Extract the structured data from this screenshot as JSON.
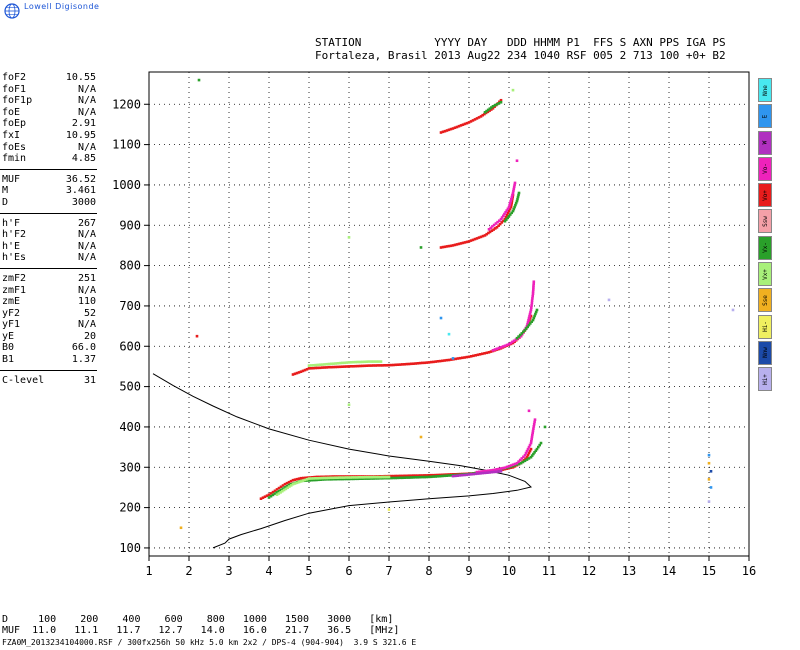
{
  "brand": "Lowell Digisonde",
  "header": {
    "line1": "STATION           YYYY DAY   DDD HHMM P1  FFS S AXN PPS IGA PS",
    "line2": "Fortaleza, Brasil 2013 Aug22 234 1040 RSF 005 2 713 100 +0+ B2"
  },
  "params": [
    [
      {
        "n": "foF2",
        "v": "10.55"
      },
      {
        "n": "foF1",
        "v": "N/A"
      },
      {
        "n": "foF1p",
        "v": "N/A"
      },
      {
        "n": "foE",
        "v": "N/A"
      },
      {
        "n": "foEp",
        "v": "2.91"
      },
      {
        "n": "fxI",
        "v": "10.95"
      },
      {
        "n": "foEs",
        "v": "N/A"
      },
      {
        "n": "fmin",
        "v": "4.85"
      }
    ],
    [
      {
        "n": "MUF",
        "v": "36.52"
      },
      {
        "n": "M",
        "v": "3.461"
      },
      {
        "n": "D",
        "v": "3000"
      }
    ],
    [
      {
        "n": "h'F",
        "v": "267"
      },
      {
        "n": "h'F2",
        "v": "N/A"
      },
      {
        "n": "h'E",
        "v": "N/A"
      },
      {
        "n": "h'Es",
        "v": "N/A"
      }
    ],
    [
      {
        "n": "zmF2",
        "v": "251"
      },
      {
        "n": "zmF1",
        "v": "N/A"
      },
      {
        "n": "zmE",
        "v": "110"
      },
      {
        "n": "yF2",
        "v": "52"
      },
      {
        "n": "yF1",
        "v": "N/A"
      },
      {
        "n": "yE",
        "v": "20"
      },
      {
        "n": "B0",
        "v": "66.0"
      },
      {
        "n": "B1",
        "v": "1.37"
      }
    ],
    [
      {
        "n": "C-level",
        "v": "31"
      }
    ]
  ],
  "legend": [
    {
      "label": "Nne",
      "color": "#48e8f0"
    },
    {
      "label": "E",
      "color": "#2f95ee"
    },
    {
      "label": "W",
      "color": "#b030c0"
    },
    {
      "label": "Vo-",
      "color": "#ee22bb"
    },
    {
      "label": "Vo+",
      "color": "#e81c1c"
    },
    {
      "label": "Ssw",
      "color": "#f4a0a8"
    },
    {
      "label": "Vx-",
      "color": "#2aa02a"
    },
    {
      "label": "Vx+",
      "color": "#a8f07a"
    },
    {
      "label": "Sse",
      "color": "#f0b020"
    },
    {
      "label": "Hi-",
      "color": "#f0f060"
    },
    {
      "label": "Nnw",
      "color": "#1c4aa8"
    },
    {
      "label": "Hi+",
      "color": "#b8b0ee"
    }
  ],
  "dtable": {
    "row1": "D     100    200    400    600    800   1000   1500   3000   [km]",
    "row2": "MUF  11.0   11.1   11.7   12.7   14.0   16.0   21.7   36.5   [MHz]"
  },
  "footer": "FZA0M_2013234104000.RSF / 300fx256h 50 kHz 5.0 km 2x2 / DPS-4 (904-904)  3.9 S 321.6 E",
  "chart_data": {
    "type": "scatter",
    "xlim": [
      1,
      16
    ],
    "ylim": [
      80,
      1280
    ],
    "x_ticks": [
      1,
      2,
      3,
      4,
      5,
      6,
      7,
      8,
      9,
      10,
      11,
      12,
      13,
      14,
      15,
      16
    ],
    "y_ticks": [
      100,
      200,
      300,
      400,
      500,
      600,
      700,
      800,
      900,
      1000,
      1100,
      1200
    ],
    "grid": true,
    "profile": [
      [
        2.6,
        100
      ],
      [
        2.9,
        112
      ],
      [
        3.0,
        122
      ],
      [
        3.3,
        133
      ],
      [
        3.8,
        148
      ],
      [
        4.4,
        168
      ],
      [
        5.0,
        186
      ],
      [
        6.0,
        205
      ],
      [
        7.0,
        214
      ],
      [
        8.0,
        222
      ],
      [
        9.0,
        229
      ],
      [
        9.6,
        235
      ],
      [
        10.2,
        243
      ],
      [
        10.55,
        251
      ],
      [
        10.4,
        265
      ],
      [
        10.0,
        280
      ],
      [
        9.4,
        293
      ],
      [
        8.8,
        304
      ],
      [
        8.0,
        315
      ],
      [
        7.0,
        328
      ],
      [
        6.0,
        345
      ],
      [
        5.0,
        367
      ],
      [
        4.0,
        395
      ],
      [
        3.2,
        425
      ],
      [
        2.6,
        452
      ],
      [
        2.1,
        476
      ],
      [
        1.6,
        503
      ],
      [
        1.1,
        532
      ]
    ],
    "traces": [
      {
        "color": "#e81c1c",
        "points": [
          [
            3.8,
            222
          ],
          [
            4.0,
            232
          ],
          [
            4.2,
            245
          ],
          [
            4.4,
            258
          ],
          [
            4.6,
            268
          ],
          [
            4.8,
            273
          ],
          [
            5.2,
            276
          ],
          [
            5.6,
            277
          ],
          [
            6.0,
            277
          ],
          [
            6.5,
            277
          ],
          [
            7.0,
            278
          ],
          [
            7.5,
            279
          ],
          [
            8.0,
            280
          ],
          [
            8.5,
            282
          ],
          [
            9.0,
            284
          ],
          [
            9.4,
            288
          ],
          [
            9.8,
            293
          ],
          [
            10.1,
            300
          ],
          [
            10.3,
            310
          ],
          [
            10.45,
            325
          ],
          [
            10.55,
            345
          ]
        ]
      },
      {
        "color": "#2aa02a",
        "points": [
          [
            4.0,
            225
          ],
          [
            4.2,
            238
          ],
          [
            4.5,
            256
          ],
          [
            4.8,
            266
          ],
          [
            5.4,
            270
          ],
          [
            6.0,
            271
          ],
          [
            7.0,
            273
          ],
          [
            8.0,
            276
          ],
          [
            9.0,
            283
          ],
          [
            9.6,
            292
          ],
          [
            10.0,
            300
          ],
          [
            10.3,
            310
          ],
          [
            10.55,
            325
          ],
          [
            10.7,
            345
          ],
          [
            10.8,
            360
          ]
        ]
      },
      {
        "color": "#ee22bb",
        "points": [
          [
            9.2,
            288
          ],
          [
            9.6,
            293
          ],
          [
            9.9,
            299
          ],
          [
            10.2,
            310
          ],
          [
            10.4,
            330
          ],
          [
            10.55,
            360
          ],
          [
            10.6,
            390
          ],
          [
            10.65,
            418
          ]
        ]
      },
      {
        "color": "#b030c0",
        "points": [
          [
            8.6,
            278
          ],
          [
            9.0,
            282
          ],
          [
            9.4,
            286
          ],
          [
            9.8,
            290
          ]
        ]
      },
      {
        "color": "#a8f07a",
        "points": [
          [
            4.2,
            232
          ],
          [
            4.6,
            258
          ],
          [
            5.0,
            272
          ],
          [
            5.6,
            274
          ],
          [
            6.2,
            275
          ],
          [
            7.0,
            276
          ]
        ]
      },
      {
        "color": "#e81c1c",
        "points": [
          [
            4.6,
            530
          ],
          [
            4.8,
            537
          ],
          [
            5.0,
            545
          ],
          [
            5.5,
            548
          ],
          [
            6.0,
            550
          ],
          [
            6.5,
            552
          ],
          [
            7.0,
            553
          ],
          [
            7.5,
            556
          ],
          [
            8.0,
            560
          ],
          [
            8.5,
            566
          ],
          [
            9.0,
            574
          ],
          [
            9.5,
            585
          ],
          [
            9.8,
            595
          ],
          [
            10.1,
            608
          ],
          [
            10.3,
            625
          ],
          [
            10.45,
            648
          ],
          [
            10.55,
            675
          ]
        ]
      },
      {
        "color": "#ee22bb",
        "points": [
          [
            9.6,
            590
          ],
          [
            10.0,
            605
          ],
          [
            10.3,
            625
          ],
          [
            10.45,
            650
          ],
          [
            10.55,
            690
          ],
          [
            10.6,
            730
          ],
          [
            10.62,
            760
          ]
        ]
      },
      {
        "color": "#2aa02a",
        "points": [
          [
            10.2,
            620
          ],
          [
            10.4,
            640
          ],
          [
            10.6,
            665
          ],
          [
            10.7,
            690
          ]
        ]
      },
      {
        "color": "#a8f07a",
        "points": [
          [
            5.0,
            552
          ],
          [
            5.5,
            556
          ],
          [
            6.0,
            560
          ],
          [
            6.5,
            562
          ],
          [
            6.8,
            562
          ]
        ]
      },
      {
        "color": "#e81c1c",
        "points": [
          [
            8.3,
            845
          ],
          [
            8.6,
            850
          ],
          [
            9.0,
            860
          ],
          [
            9.4,
            875
          ],
          [
            9.7,
            895
          ],
          [
            9.9,
            915
          ],
          [
            10.05,
            945
          ],
          [
            10.1,
            975
          ]
        ]
      },
      {
        "color": "#ee22bb",
        "points": [
          [
            9.5,
            890
          ],
          [
            9.8,
            915
          ],
          [
            10.0,
            945
          ],
          [
            10.1,
            980
          ],
          [
            10.15,
            1005
          ]
        ]
      },
      {
        "color": "#2aa02a",
        "points": [
          [
            9.9,
            910
          ],
          [
            10.1,
            935
          ],
          [
            10.2,
            960
          ],
          [
            10.25,
            980
          ]
        ]
      },
      {
        "color": "#e81c1c",
        "points": [
          [
            8.3,
            1130
          ],
          [
            8.6,
            1140
          ],
          [
            9.0,
            1155
          ],
          [
            9.3,
            1170
          ],
          [
            9.6,
            1190
          ],
          [
            9.8,
            1210
          ]
        ]
      },
      {
        "color": "#2aa02a",
        "points": [
          [
            9.4,
            1180
          ],
          [
            9.6,
            1195
          ],
          [
            9.8,
            1205
          ]
        ]
      }
    ],
    "dots": [
      {
        "x": 2.25,
        "y": 1260,
        "color": "#2aa02a"
      },
      {
        "x": 10.1,
        "y": 1235,
        "color": "#a8f07a"
      },
      {
        "x": 10.2,
        "y": 1060,
        "color": "#ee22bb"
      },
      {
        "x": 6.0,
        "y": 870,
        "color": "#a8f07a"
      },
      {
        "x": 7.8,
        "y": 845,
        "color": "#2aa02a"
      },
      {
        "x": 2.2,
        "y": 625,
        "color": "#e81c1c"
      },
      {
        "x": 12.5,
        "y": 715,
        "color": "#b8b0ee"
      },
      {
        "x": 15.6,
        "y": 690,
        "color": "#b8b0ee"
      },
      {
        "x": 8.3,
        "y": 670,
        "color": "#2f95ee"
      },
      {
        "x": 8.5,
        "y": 630,
        "color": "#48e8f0"
      },
      {
        "x": 8.6,
        "y": 570,
        "color": "#2f95ee"
      },
      {
        "x": 6.0,
        "y": 455,
        "color": "#a8f07a"
      },
      {
        "x": 7.8,
        "y": 375,
        "color": "#f0b020"
      },
      {
        "x": 10.5,
        "y": 440,
        "color": "#ee22bb"
      },
      {
        "x": 10.9,
        "y": 400,
        "color": "#2aa02a"
      },
      {
        "x": 1.8,
        "y": 150,
        "color": "#f0b020"
      },
      {
        "x": 7.0,
        "y": 195,
        "color": "#f0f060"
      },
      {
        "x": 15.0,
        "y": 330,
        "color": "#2f95ee"
      },
      {
        "x": 15.0,
        "y": 310,
        "color": "#f0b020"
      },
      {
        "x": 15.05,
        "y": 290,
        "color": "#1c4aa8"
      },
      {
        "x": 15.0,
        "y": 270,
        "color": "#f0b020"
      },
      {
        "x": 15.05,
        "y": 250,
        "color": "#2f95ee"
      },
      {
        "x": 15.0,
        "y": 215,
        "color": "#b8b0ee"
      }
    ]
  }
}
